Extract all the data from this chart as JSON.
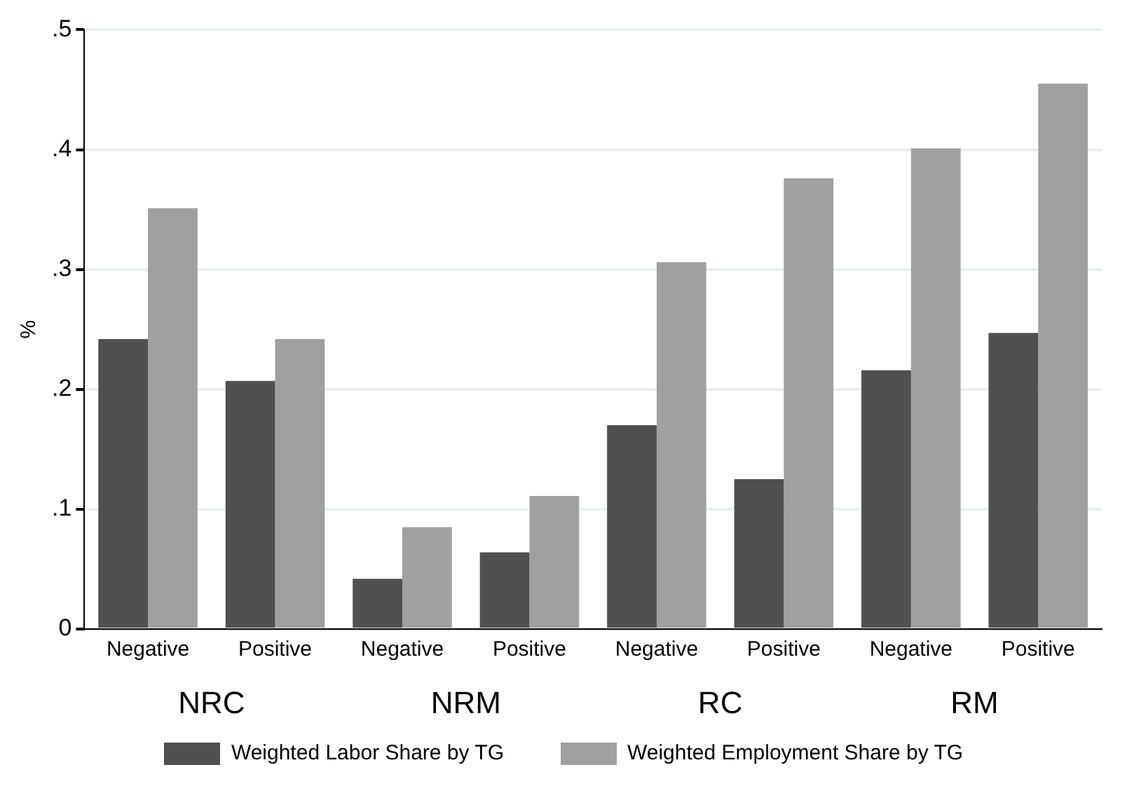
{
  "chart_data": {
    "type": "bar",
    "ylabel": "%",
    "categories": [
      "Negative",
      "Positive",
      "Negative",
      "Positive",
      "Negative",
      "Positive",
      "Negative",
      "Positive"
    ],
    "annotations": [
      "NRC",
      "NRM",
      "RC",
      "RM"
    ],
    "series": [
      {
        "name": "Weighted Labor Share by TG",
        "color": "#505050",
        "values": [
          0.242,
          0.207,
          0.042,
          0.064,
          0.17,
          0.125,
          0.216,
          0.247
        ]
      },
      {
        "name": "Weighted Employment Share by TG",
        "color": "#a0a0a0",
        "values": [
          0.351,
          0.242,
          0.085,
          0.111,
          0.306,
          0.376,
          0.401,
          0.455
        ]
      }
    ],
    "ylim": [
      0,
      0.5
    ],
    "yticks": [
      0,
      {
        "value": 0.1,
        "label": ".1"
      },
      {
        "value": 0.2,
        "label": ".2"
      },
      {
        "value": 0.3,
        "label": ".3"
      },
      {
        "value": 0.4,
        "label": ".4"
      },
      {
        "value": 0.5,
        "label": ".5"
      }
    ],
    "grid": "y",
    "legend": "bottom"
  }
}
